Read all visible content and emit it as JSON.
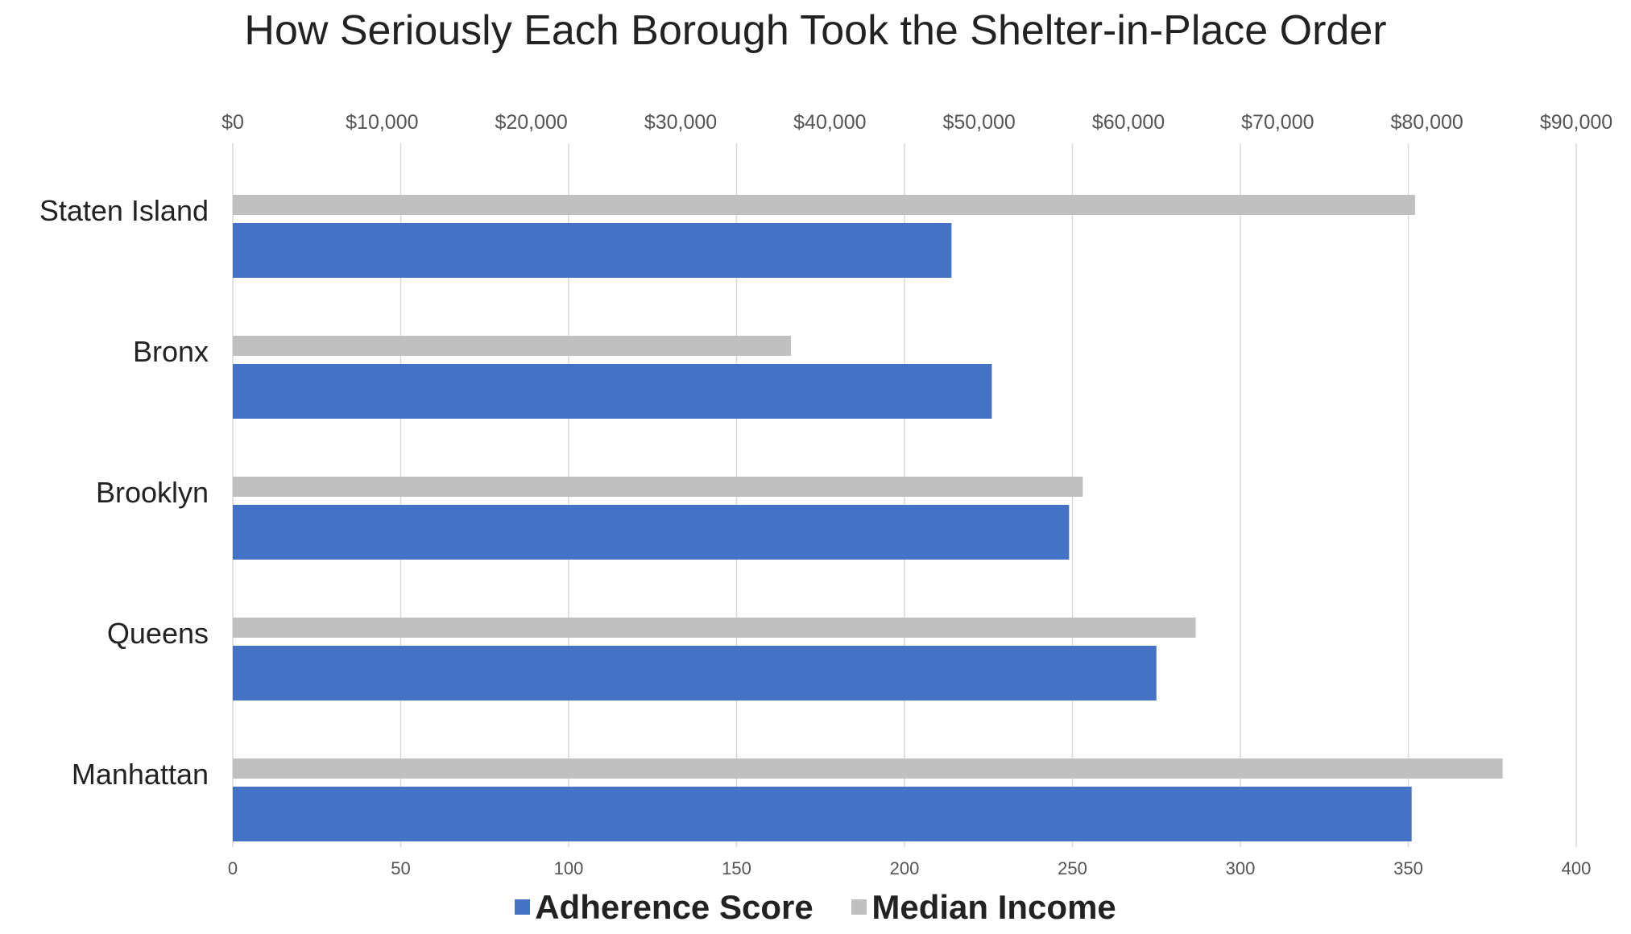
{
  "chart_data": {
    "type": "bar",
    "orientation": "horizontal",
    "title": "How Seriously Each Borough Took the Shelter-in-Place Order",
    "categories": [
      "Staten Island",
      "Bronx",
      "Brooklyn",
      "Queens",
      "Manhattan"
    ],
    "series": [
      {
        "name": "Median Income",
        "axis": "top",
        "color": "#c0c0c0",
        "values": [
          79201,
          37397,
          56942,
          64509,
          85071
        ]
      },
      {
        "name": "Adherence Score",
        "axis": "bottom",
        "color": "#4472c4",
        "values": [
          214,
          226,
          249,
          275,
          351
        ]
      }
    ],
    "x_top": {
      "range": [
        0,
        90000
      ],
      "ticks": [
        0,
        10000,
        20000,
        30000,
        40000,
        50000,
        60000,
        70000,
        80000,
        90000
      ],
      "tick_labels": [
        "$0",
        "$10,000",
        "$20,000",
        "$30,000",
        "$40,000",
        "$50,000",
        "$60,000",
        "$70,000",
        "$80,000",
        "$90,000"
      ]
    },
    "x_bottom": {
      "range": [
        0,
        400
      ],
      "ticks": [
        0,
        50,
        100,
        150,
        200,
        250,
        300,
        350,
        400
      ],
      "tick_labels": [
        "0",
        "50",
        "100",
        "150",
        "200",
        "250",
        "300",
        "350",
        "400"
      ]
    },
    "grid": true,
    "legend": {
      "position": "bottom",
      "entries": [
        {
          "label": "Adherence Score",
          "color": "#4472c4"
        },
        {
          "label": "Median Income",
          "color": "#c0c0c0"
        }
      ]
    }
  }
}
